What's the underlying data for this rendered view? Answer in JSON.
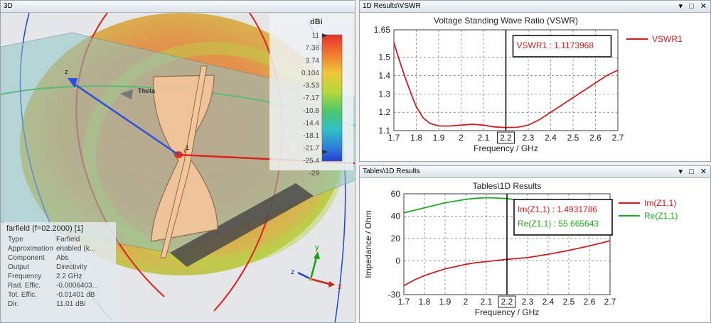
{
  "left_pane": {
    "title": "3D",
    "colorbar": {
      "unit": "dBi",
      "ticks": [
        "11",
        "7.38",
        "3.74",
        "0.104",
        "-3.53",
        "-7.17",
        "-10.8",
        "-14.4",
        "-18.1",
        "-21.7",
        "-25.4",
        "-29"
      ]
    },
    "axes_labels": {
      "theta": "Theta",
      "z": "z",
      "x": "x",
      "y": "y",
      "one": "1"
    },
    "info": {
      "header": "farfield (f=02.2000) [1]",
      "rows": [
        {
          "key": "Type",
          "value": "Farfield"
        },
        {
          "key": "Approximation",
          "value": "enabled (k..."
        },
        {
          "key": "Component",
          "value": "Abs"
        },
        {
          "key": "Output",
          "value": "Directivity"
        },
        {
          "key": "Frequency",
          "value": "2.2 GHz"
        },
        {
          "key": "Rad. Effic.",
          "value": "-0.0006403..."
        },
        {
          "key": "Tot. Effic.",
          "value": "-0.01401 dB"
        },
        {
          "key": "Dir.",
          "value": "11.01 dBi"
        }
      ]
    }
  },
  "top_right": {
    "title": "1D Results\\VSWR",
    "controls": "▾ □ ✕"
  },
  "bottom_right": {
    "title": "Tables\\1D Results",
    "controls": "▾ □ ✕"
  },
  "chart_data": [
    {
      "type": "line",
      "title": "Voltage Standing Wave Ratio (VSWR)",
      "xlabel": "Frequency / GHz",
      "ylabel": "",
      "xlim": [
        1.7,
        2.7
      ],
      "ylim": [
        1.1,
        1.65
      ],
      "xticks": [
        "1.7",
        "1.8",
        "1.9",
        "2",
        "2.1",
        "2.2",
        "2.3",
        "2.4",
        "2.5",
        "2.6",
        "2.7"
      ],
      "yticks": [
        "1.1",
        "1.2",
        "1.3",
        "1.4",
        "1.5",
        "1.65"
      ],
      "marker_x": 2.2,
      "marker_label": "2.2",
      "annotation": "VSWR1 : 1.1173968",
      "grid": true,
      "legend": "right",
      "series": [
        {
          "name": "VSWR1",
          "color": "#cc1f1f",
          "x": [
            1.7,
            1.72,
            1.75,
            1.78,
            1.8,
            1.83,
            1.86,
            1.9,
            1.95,
            2.0,
            2.05,
            2.1,
            2.15,
            2.2,
            2.25,
            2.3,
            2.35,
            2.4,
            2.45,
            2.5,
            2.55,
            2.6,
            2.65,
            2.7
          ],
          "values": [
            1.58,
            1.5,
            1.39,
            1.29,
            1.23,
            1.17,
            1.14,
            1.125,
            1.125,
            1.13,
            1.135,
            1.13,
            1.12,
            1.117,
            1.118,
            1.13,
            1.16,
            1.2,
            1.24,
            1.28,
            1.32,
            1.36,
            1.4,
            1.43
          ]
        }
      ]
    },
    {
      "type": "line",
      "title": "Tables\\1D Results",
      "xlabel": "Frequency / GHz",
      "ylabel": "Impedance / Ohm",
      "xlim": [
        1.7,
        2.7
      ],
      "ylim": [
        -30,
        60
      ],
      "xticks": [
        "1.7",
        "1.8",
        "1.9",
        "2",
        "2.1",
        "2.2",
        "2.3",
        "2.4",
        "2.5",
        "2.6",
        "2.7"
      ],
      "yticks": [
        "-30",
        "0",
        "20",
        "40",
        "60"
      ],
      "marker_x": 2.2,
      "marker_label": "2.2",
      "annotations": [
        "Im(Z1,1) : 1.4931786",
        "Re(Z1,1) : 55.665643"
      ],
      "grid": true,
      "legend": "right",
      "series": [
        {
          "name": "Im(Z1,1)",
          "color": "#cc1f1f",
          "x": [
            1.7,
            1.75,
            1.8,
            1.85,
            1.9,
            1.95,
            2.0,
            2.05,
            2.1,
            2.15,
            2.2,
            2.3,
            2.4,
            2.5,
            2.6,
            2.7
          ],
          "values": [
            -22,
            -17,
            -13,
            -10,
            -7,
            -5,
            -3,
            -1.5,
            -0.5,
            0.5,
            1.49,
            3,
            6,
            9.5,
            13.5,
            18
          ]
        },
        {
          "name": "Re(Z1,1)",
          "color": "#1faa1f",
          "x": [
            1.7,
            1.8,
            1.9,
            2.0,
            2.05,
            2.1,
            2.15,
            2.2,
            2.25,
            2.3,
            2.35
          ],
          "values": [
            43,
            47.5,
            52,
            55,
            56,
            56.5,
            56.2,
            55.67,
            54.5,
            53,
            51
          ]
        }
      ]
    }
  ]
}
